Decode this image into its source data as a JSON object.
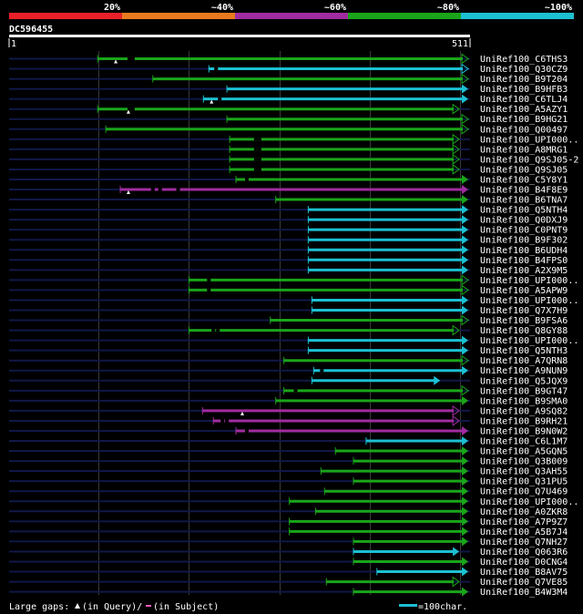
{
  "chart_data": {
    "type": "alignment-hits",
    "title": "DC596455",
    "query_range": [
      1,
      511
    ],
    "scale_start_label": "1",
    "scale_end_label": "511",
    "color_scale": [
      {
        "label": "20%",
        "color": "#e8202a"
      },
      {
        "label": "~40%",
        "color": "#e87a1e"
      },
      {
        "label": "~60%",
        "color": "#a02ca0"
      },
      {
        "label": "~80%",
        "color": "#1aa51a"
      },
      {
        "label": "~100%",
        "color": "#1cc0d2"
      }
    ],
    "hits": [
      {
        "name": "UniRef100_C6THS3",
        "start": 99,
        "end": 509,
        "color": "green",
        "end_mark": "open-triangle",
        "gaps": [
          132,
          136
        ],
        "query_gaps": [
          119
        ]
      },
      {
        "name": "UniRef100_Q30CZ9",
        "start": 222,
        "end": 509,
        "color": "cyan",
        "end_mark": "open-triangle",
        "gaps": [
          228
        ],
        "query_gaps": []
      },
      {
        "name": "UniRef100_B9T204",
        "start": 160,
        "end": 509,
        "color": "green",
        "end_mark": "open-triangle",
        "gaps": [],
        "query_gaps": []
      },
      {
        "name": "UniRef100_B9HFB3",
        "start": 242,
        "end": 509,
        "color": "cyan",
        "end_mark": "filled-triangle",
        "gaps": [],
        "query_gaps": []
      },
      {
        "name": "UniRef100_C6TLJ4",
        "start": 216,
        "end": 509,
        "color": "cyan",
        "end_mark": "filled-triangle",
        "gaps": [
          232
        ],
        "query_gaps": [
          225
        ]
      },
      {
        "name": "UniRef100_A5AZY1",
        "start": 99,
        "end": 499,
        "color": "green",
        "end_mark": "open-triangle",
        "gaps": [
          132,
          136
        ],
        "query_gaps": [
          133
        ]
      },
      {
        "name": "UniRef100_B9HG21",
        "start": 242,
        "end": 509,
        "color": "green",
        "end_mark": "open-triangle",
        "gaps": [],
        "query_gaps": []
      },
      {
        "name": "UniRef100_Q00497",
        "start": 108,
        "end": 509,
        "color": "green",
        "end_mark": "open-triangle",
        "gaps": [],
        "query_gaps": []
      },
      {
        "name": "UniRef100_UPI000..",
        "start": 245,
        "end": 499,
        "color": "green",
        "end_mark": "open-triangle",
        "gaps": [
          272,
          276
        ],
        "query_gaps": []
      },
      {
        "name": "UniRef100_A8MRG1",
        "start": 245,
        "end": 499,
        "color": "green",
        "end_mark": "open-triangle",
        "gaps": [
          272,
          276
        ],
        "query_gaps": []
      },
      {
        "name": "UniRef100_Q9SJ05-2",
        "start": 245,
        "end": 499,
        "color": "green",
        "end_mark": "open-triangle",
        "gaps": [
          272,
          276
        ],
        "query_gaps": []
      },
      {
        "name": "UniRef100_Q9SJ05",
        "start": 245,
        "end": 499,
        "color": "green",
        "end_mark": "open-triangle",
        "gaps": [
          272,
          276
        ],
        "query_gaps": []
      },
      {
        "name": "UniRef100_C5Y8Y1",
        "start": 252,
        "end": 509,
        "color": "green",
        "end_mark": "filled-triangle",
        "gaps": [
          262
        ],
        "query_gaps": []
      },
      {
        "name": "UniRef100_B4F8E9",
        "start": 124,
        "end": 509,
        "color": "purple",
        "end_mark": "filled-triangle",
        "gaps": [
          158,
          166,
          186
        ],
        "query_gaps": [
          133
        ]
      },
      {
        "name": "UniRef100_B6TNA7",
        "start": 296,
        "end": 509,
        "color": "green",
        "end_mark": "filled-triangle",
        "gaps": [],
        "query_gaps": []
      },
      {
        "name": "UniRef100_Q5NTH4",
        "start": 332,
        "end": 509,
        "color": "cyan",
        "end_mark": "filled-triangle",
        "gaps": [],
        "query_gaps": []
      },
      {
        "name": "UniRef100_Q0DXJ9",
        "start": 332,
        "end": 509,
        "color": "cyan",
        "end_mark": "filled-triangle",
        "gaps": [],
        "query_gaps": []
      },
      {
        "name": "UniRef100_C0PNT9",
        "start": 332,
        "end": 509,
        "color": "cyan",
        "end_mark": "filled-triangle",
        "gaps": [],
        "query_gaps": []
      },
      {
        "name": "UniRef100_B9F302",
        "start": 332,
        "end": 509,
        "color": "cyan",
        "end_mark": "filled-triangle",
        "gaps": [],
        "query_gaps": []
      },
      {
        "name": "UniRef100_B6UDH4",
        "start": 332,
        "end": 509,
        "color": "cyan",
        "end_mark": "filled-triangle",
        "gaps": [],
        "query_gaps": []
      },
      {
        "name": "UniRef100_B4FPS0",
        "start": 332,
        "end": 509,
        "color": "cyan",
        "end_mark": "filled-triangle",
        "gaps": [],
        "query_gaps": []
      },
      {
        "name": "UniRef100_A2X9M5",
        "start": 332,
        "end": 509,
        "color": "cyan",
        "end_mark": "filled-triangle",
        "gaps": [],
        "query_gaps": []
      },
      {
        "name": "UniRef100_UPI000..",
        "start": 200,
        "end": 509,
        "color": "green",
        "end_mark": "open-triangle",
        "gaps": [
          220
        ],
        "query_gaps": []
      },
      {
        "name": "UniRef100_A5APW9",
        "start": 200,
        "end": 509,
        "color": "green",
        "end_mark": "open-triangle",
        "gaps": [
          220
        ],
        "query_gaps": []
      },
      {
        "name": "UniRef100_UPI000..",
        "start": 336,
        "end": 509,
        "color": "cyan",
        "end_mark": "filled-triangle",
        "gaps": [],
        "query_gaps": []
      },
      {
        "name": "UniRef100_Q7X7H9",
        "start": 336,
        "end": 509,
        "color": "cyan",
        "end_mark": "filled-triangle",
        "gaps": [],
        "query_gaps": []
      },
      {
        "name": "UniRef100_B9FSA6",
        "start": 290,
        "end": 509,
        "color": "green",
        "end_mark": "open-triangle",
        "gaps": [],
        "query_gaps": []
      },
      {
        "name": "UniRef100_Q8GY88",
        "start": 200,
        "end": 499,
        "color": "green",
        "end_mark": "open-triangle",
        "gaps": [
          225,
          230
        ],
        "query_gaps": []
      },
      {
        "name": "UniRef100_UPI000..",
        "start": 332,
        "end": 509,
        "color": "cyan",
        "end_mark": "filled-triangle",
        "gaps": [],
        "query_gaps": []
      },
      {
        "name": "UniRef100_Q5NTH3",
        "start": 332,
        "end": 509,
        "color": "cyan",
        "end_mark": "filled-triangle",
        "gaps": [],
        "query_gaps": []
      },
      {
        "name": "UniRef100_A7QRN8",
        "start": 305,
        "end": 509,
        "color": "green",
        "end_mark": "open-triangle",
        "gaps": [],
        "query_gaps": []
      },
      {
        "name": "UniRef100_A9NUN9",
        "start": 338,
        "end": 509,
        "color": "cyan",
        "end_mark": "filled-triangle",
        "gaps": [
          345
        ],
        "query_gaps": []
      },
      {
        "name": "UniRef100_Q5JQX9",
        "start": 336,
        "end": 478,
        "color": "cyan",
        "end_mark": "filled-triangle",
        "gaps": [],
        "query_gaps": []
      },
      {
        "name": "UniRef100_B9GT47",
        "start": 305,
        "end": 509,
        "color": "green",
        "end_mark": "open-triangle",
        "gaps": [
          316
        ],
        "query_gaps": []
      },
      {
        "name": "UniRef100_B9SMA0",
        "start": 296,
        "end": 509,
        "color": "green",
        "end_mark": "filled-triangle",
        "gaps": [],
        "query_gaps": []
      },
      {
        "name": "UniRef100_A9SQ82",
        "start": 215,
        "end": 499,
        "color": "purple",
        "end_mark": "open-triangle",
        "gaps": [],
        "query_gaps": [
          259
        ]
      },
      {
        "name": "UniRef100_B9RH21",
        "start": 227,
        "end": 499,
        "color": "purple",
        "end_mark": "open-triangle",
        "gaps": [
          235,
          240
        ],
        "query_gaps": []
      },
      {
        "name": "UniRef100_B9N0W2",
        "start": 252,
        "end": 509,
        "color": "purple",
        "end_mark": "filled-triangle",
        "gaps": [
          262
        ],
        "query_gaps": []
      },
      {
        "name": "UniRef100_C6L1M7",
        "start": 396,
        "end": 509,
        "color": "cyan",
        "end_mark": "filled-triangle",
        "gaps": [],
        "query_gaps": []
      },
      {
        "name": "UniRef100_A5GQN5",
        "start": 362,
        "end": 509,
        "color": "green",
        "end_mark": "filled-triangle",
        "gaps": [],
        "query_gaps": []
      },
      {
        "name": "UniRef100_Q3B009",
        "start": 382,
        "end": 509,
        "color": "green",
        "end_mark": "filled-triangle",
        "gaps": [],
        "query_gaps": []
      },
      {
        "name": "UniRef100_Q3AH55",
        "start": 346,
        "end": 509,
        "color": "green",
        "end_mark": "filled-triangle",
        "gaps": [],
        "query_gaps": []
      },
      {
        "name": "UniRef100_Q31PU5",
        "start": 382,
        "end": 509,
        "color": "green",
        "end_mark": "filled-triangle",
        "gaps": [],
        "query_gaps": []
      },
      {
        "name": "UniRef100_Q7U469",
        "start": 350,
        "end": 509,
        "color": "green",
        "end_mark": "filled-triangle",
        "gaps": [],
        "query_gaps": []
      },
      {
        "name": "UniRef100_UPI000..",
        "start": 311,
        "end": 509,
        "color": "green",
        "end_mark": "filled-triangle",
        "gaps": [],
        "query_gaps": []
      },
      {
        "name": "UniRef100_A0ZKR8",
        "start": 340,
        "end": 509,
        "color": "green",
        "end_mark": "filled-triangle",
        "gaps": [],
        "query_gaps": []
      },
      {
        "name": "UniRef100_A7P9Z7",
        "start": 311,
        "end": 509,
        "color": "green",
        "end_mark": "filled-triangle",
        "gaps": [],
        "query_gaps": []
      },
      {
        "name": "UniRef100_A5B7J4",
        "start": 311,
        "end": 509,
        "color": "green",
        "end_mark": "filled-triangle",
        "gaps": [],
        "query_gaps": []
      },
      {
        "name": "UniRef100_Q7NH27",
        "start": 382,
        "end": 509,
        "color": "green",
        "end_mark": "filled-triangle",
        "gaps": [],
        "query_gaps": []
      },
      {
        "name": "UniRef100_Q063R6",
        "start": 382,
        "end": 499,
        "color": "cyan",
        "end_mark": "filled-triangle",
        "gaps": [],
        "query_gaps": []
      },
      {
        "name": "UniRef100_D0CNG4",
        "start": 382,
        "end": 509,
        "color": "green",
        "end_mark": "filled-triangle",
        "gaps": [],
        "query_gaps": []
      },
      {
        "name": "UniRef100_B8AV75",
        "start": 408,
        "end": 509,
        "color": "cyan",
        "end_mark": "filled-triangle",
        "gaps": [],
        "query_gaps": []
      },
      {
        "name": "UniRef100_Q7VE85",
        "start": 352,
        "end": 499,
        "color": "green",
        "end_mark": "open-triangle",
        "gaps": [],
        "query_gaps": []
      },
      {
        "name": "UniRef100_B4W3M4",
        "start": 382,
        "end": 509,
        "color": "green",
        "end_mark": "filled-triangle",
        "gaps": [],
        "query_gaps": []
      }
    ],
    "footer": {
      "gap_text_prefix": "Large gaps:",
      "query_gap_text": "(in Query)/",
      "subject_gap_text": "(in Subject)",
      "scale_text": "=100char."
    }
  }
}
